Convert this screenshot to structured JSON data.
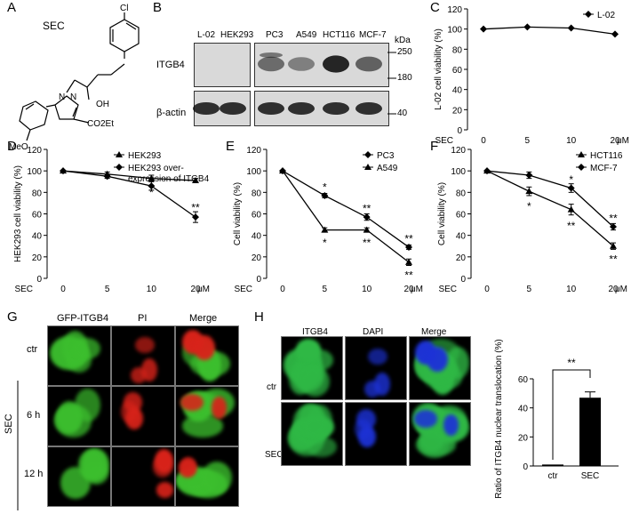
{
  "panels": {
    "A": {
      "letter": "A",
      "compound": "SEC",
      "groups": [
        "Cl",
        "OH",
        "N",
        "N",
        "CO2Et",
        "MeO"
      ]
    },
    "B": {
      "letter": "B",
      "lanes": [
        "L-02",
        "HEK293",
        "PC3",
        "A549",
        "HCT116",
        "MCF-7"
      ],
      "rows": [
        "ITGB4",
        "β-actin"
      ],
      "kda_label": "kDa",
      "markers": [
        "250",
        "180",
        "40"
      ],
      "itgb4_intensity": [
        0.02,
        0.02,
        0.55,
        0.45,
        0.9,
        0.6
      ]
    },
    "C": {
      "letter": "C"
    },
    "D": {
      "letter": "D"
    },
    "E": {
      "letter": "E"
    },
    "F": {
      "letter": "F"
    },
    "G": {
      "letter": "G",
      "columns": [
        "GFP-ITGB4",
        "PI",
        "Merge"
      ],
      "rows": [
        "ctr",
        "6 h",
        "12 h"
      ],
      "side_label": "SEC"
    },
    "H": {
      "letter": "H",
      "columns": [
        "ITGB4",
        "DAPI",
        "Merge"
      ],
      "rows": [
        "ctr",
        "SEC"
      ]
    }
  },
  "chart_data": [
    {
      "id": "C",
      "type": "line",
      "x": [
        0,
        5,
        10,
        20
      ],
      "xticks": [
        "0",
        "5",
        "10",
        "20"
      ],
      "xprefix": "SEC",
      "xunit": "μM",
      "ylabel": "L-02 cell viability (%)",
      "ylim": [
        0,
        120
      ],
      "yticks": [
        0,
        20,
        40,
        60,
        80,
        100,
        120
      ],
      "series": [
        {
          "name": "L-02",
          "values": [
            100,
            102,
            101,
            95
          ],
          "err": [
            0,
            0,
            0,
            0
          ],
          "marker": "diamond"
        }
      ],
      "legend": "top-right",
      "annotations": []
    },
    {
      "id": "D",
      "type": "line",
      "x": [
        0,
        5,
        10,
        20
      ],
      "xticks": [
        "0",
        "5",
        "10",
        "20"
      ],
      "xprefix": "SEC",
      "xunit": "μM",
      "ylabel": "HEK293 cell viability (%)",
      "ylim": [
        0,
        120
      ],
      "yticks": [
        0,
        20,
        40,
        60,
        80,
        100,
        120
      ],
      "series": [
        {
          "name": "HEK293",
          "values": [
            100,
            97,
            93,
            91
          ],
          "err": [
            0,
            2,
            3,
            2
          ],
          "marker": "triangle"
        },
        {
          "name": "HEK293 over-expression of ITGB4",
          "values": [
            100,
            95,
            86,
            57
          ],
          "err": [
            0,
            2,
            4,
            5
          ],
          "marker": "diamond"
        }
      ],
      "legend": "top-right",
      "annotations": [
        {
          "x": 10,
          "y": 80,
          "text": "*"
        },
        {
          "x": 20,
          "y": 66,
          "text": "**"
        }
      ]
    },
    {
      "id": "E",
      "type": "line",
      "x": [
        0,
        5,
        10,
        20
      ],
      "xticks": [
        "0",
        "5",
        "10",
        "20"
      ],
      "xprefix": "SEC",
      "xunit": "μM",
      "ylabel": "Cell viability (%)",
      "ylim": [
        0,
        120
      ],
      "yticks": [
        0,
        20,
        40,
        60,
        80,
        100,
        120
      ],
      "series": [
        {
          "name": "PC3",
          "values": [
            100,
            77,
            57,
            29
          ],
          "err": [
            0,
            2,
            3,
            2
          ],
          "marker": "diamond"
        },
        {
          "name": "A549",
          "values": [
            100,
            45,
            45,
            15
          ],
          "err": [
            0,
            2,
            2,
            3
          ],
          "marker": "triangle"
        }
      ],
      "legend": "top-right",
      "annotations": [
        {
          "x": 5,
          "y": 85,
          "text": "*"
        },
        {
          "x": 5,
          "y": 33,
          "text": "*"
        },
        {
          "x": 10,
          "y": 65,
          "text": "**"
        },
        {
          "x": 10,
          "y": 33,
          "text": "**"
        },
        {
          "x": 20,
          "y": 37,
          "text": "**"
        },
        {
          "x": 20,
          "y": 3,
          "text": "**"
        }
      ]
    },
    {
      "id": "F",
      "type": "line",
      "x": [
        0,
        5,
        10,
        20
      ],
      "xticks": [
        "0",
        "5",
        "10",
        "20"
      ],
      "xprefix": "SEC",
      "xunit": "μM",
      "ylabel": "Cell viability (%)",
      "ylim": [
        0,
        120
      ],
      "yticks": [
        0,
        20,
        40,
        60,
        80,
        100,
        120
      ],
      "series": [
        {
          "name": "HCT116",
          "values": [
            100,
            81,
            64,
            30
          ],
          "err": [
            0,
            4,
            5,
            3
          ],
          "marker": "triangle"
        },
        {
          "name": "MCF-7",
          "values": [
            100,
            96,
            84,
            48
          ],
          "err": [
            0,
            3,
            4,
            3
          ],
          "marker": "diamond"
        }
      ],
      "legend": "top-right",
      "annotations": [
        {
          "x": 5,
          "y": 67,
          "text": "*"
        },
        {
          "x": 10,
          "y": 92,
          "text": "*"
        },
        {
          "x": 10,
          "y": 49,
          "text": "**"
        },
        {
          "x": 20,
          "y": 56,
          "text": "**"
        },
        {
          "x": 20,
          "y": 18,
          "text": "**"
        }
      ]
    },
    {
      "id": "H",
      "type": "bar",
      "categories": [
        "ctr",
        "SEC"
      ],
      "values": [
        1,
        47
      ],
      "err": [
        0,
        4
      ],
      "ylabel": "Ratio of ITGB4 nuclear translocation (%)",
      "ylim": [
        0,
        60
      ],
      "yticks": [
        0,
        20,
        40,
        60
      ],
      "annotations": [
        {
          "text": "**"
        }
      ]
    }
  ]
}
